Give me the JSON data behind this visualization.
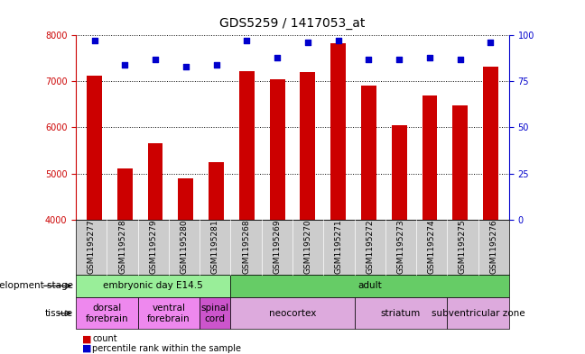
{
  "title": "GDS5259 / 1417053_at",
  "samples": [
    "GSM1195277",
    "GSM1195278",
    "GSM1195279",
    "GSM1195280",
    "GSM1195281",
    "GSM1195268",
    "GSM1195269",
    "GSM1195270",
    "GSM1195271",
    "GSM1195272",
    "GSM1195273",
    "GSM1195274",
    "GSM1195275",
    "GSM1195276"
  ],
  "counts": [
    7130,
    5100,
    5650,
    4900,
    5250,
    7230,
    7050,
    7200,
    7830,
    6900,
    6050,
    6700,
    6480,
    7330
  ],
  "percentiles": [
    97,
    84,
    87,
    83,
    84,
    97,
    88,
    96,
    97,
    87,
    87,
    88,
    87,
    96
  ],
  "ylim_left": [
    4000,
    8000
  ],
  "ylim_right": [
    0,
    100
  ],
  "yticks_left": [
    4000,
    5000,
    6000,
    7000,
    8000
  ],
  "yticks_right": [
    0,
    25,
    50,
    75,
    100
  ],
  "bar_color": "#cc0000",
  "dot_color": "#0000cc",
  "dev_stage_groups": [
    {
      "text": "embryonic day E14.5",
      "start": 0,
      "end": 4,
      "color": "#99ee99"
    },
    {
      "text": "adult",
      "start": 5,
      "end": 13,
      "color": "#66cc66"
    }
  ],
  "tissue_groups": [
    {
      "text": "dorsal\nforebrain",
      "start": 0,
      "end": 1,
      "color": "#ee88ee"
    },
    {
      "text": "ventral\nforebrain",
      "start": 2,
      "end": 3,
      "color": "#ee88ee"
    },
    {
      "text": "spinal\ncord",
      "start": 4,
      "end": 4,
      "color": "#cc55cc"
    },
    {
      "text": "neocortex",
      "start": 5,
      "end": 8,
      "color": "#ddaadd"
    },
    {
      "text": "striatum",
      "start": 9,
      "end": 11,
      "color": "#ddaadd"
    },
    {
      "text": "subventricular zone",
      "start": 12,
      "end": 13,
      "color": "#ddaadd"
    }
  ],
  "dev_label": "development stage",
  "tissue_label": "tissue",
  "legend_count_label": "count",
  "legend_pct_label": "percentile rank within the sample",
  "bar_legend_color": "#cc0000",
  "dot_legend_color": "#0000cc",
  "tick_bg_color": "#cccccc",
  "grid_color": "#555555",
  "title_fontsize": 10,
  "tick_fontsize": 7,
  "sample_fontsize": 6.5,
  "annot_fontsize": 7.5,
  "legend_fontsize": 7
}
